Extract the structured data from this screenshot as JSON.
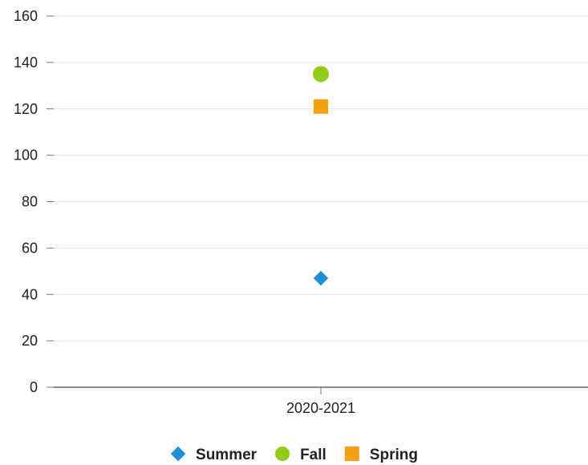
{
  "chart_data": {
    "type": "scatter",
    "title": "",
    "xlabel": "",
    "ylabel": "",
    "categories": [
      "2020-2021"
    ],
    "ylim": [
      0,
      160
    ],
    "yticks": [
      0,
      20,
      40,
      60,
      80,
      100,
      120,
      140,
      160
    ],
    "grid": true,
    "legend_position": "bottom",
    "series": [
      {
        "name": "Summer",
        "values": [
          47
        ],
        "color": "#1a8fd8",
        "marker": "diamond"
      },
      {
        "name": "Fall",
        "values": [
          135
        ],
        "color": "#8fcc14",
        "marker": "circle"
      },
      {
        "name": "Spring",
        "values": [
          121
        ],
        "color": "#f5a00f",
        "marker": "square"
      }
    ]
  }
}
